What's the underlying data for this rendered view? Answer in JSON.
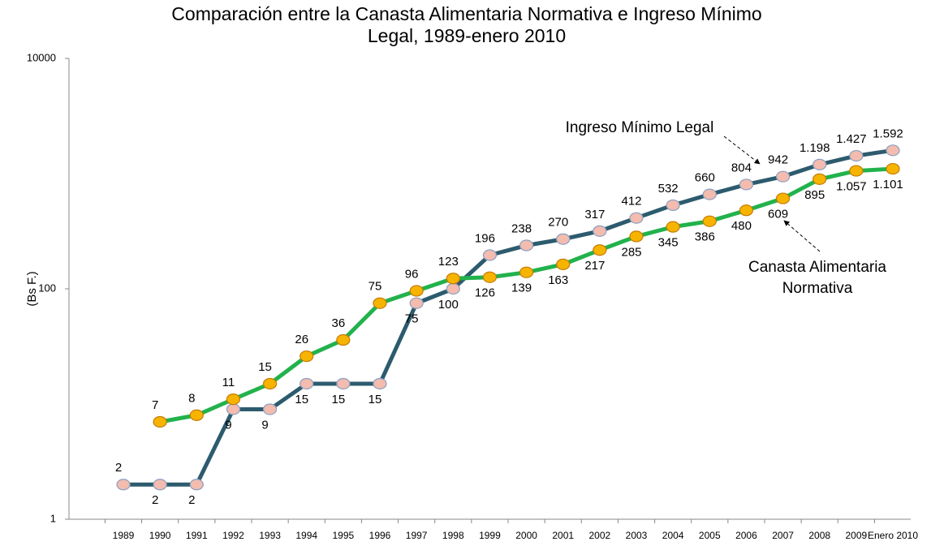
{
  "chart_data": {
    "type": "line",
    "title": [
      "Comparación entre la Canasta Alimentaria Normativa e Ingreso Mínimo",
      "Legal, 1989-enero 2010"
    ],
    "ylabel": "(Bs F.)",
    "log_scale": true,
    "ylim": [
      1,
      10000
    ],
    "yticks": [
      1,
      100,
      10000
    ],
    "categories": [
      "1989",
      "1990",
      "1991",
      "1992",
      "1993",
      "1994",
      "1995",
      "1996",
      "1997",
      "1998",
      "1999",
      "2000",
      "2001",
      "2002",
      "2003",
      "2004",
      "2005",
      "2006",
      "2007",
      "2008",
      "2009",
      "Enero 2010"
    ],
    "series": [
      {
        "name": "Ingreso Mínimo Legal",
        "color": "#2d5b6e",
        "marker_color": "#f3bcae",
        "values": [
          2,
          2,
          2,
          9,
          9,
          15,
          15,
          15,
          75,
          100,
          196,
          238,
          270,
          317,
          412,
          532,
          660,
          804,
          942,
          1198,
          1427,
          1592
        ],
        "value_labels": [
          "2",
          "2",
          "2",
          "9",
          "9",
          "15",
          "15",
          "15",
          "75",
          "100",
          "196",
          "238",
          "270",
          "317",
          "412",
          "532",
          "660",
          "804",
          "942",
          "1.198",
          "1.427",
          "1.592"
        ]
      },
      {
        "name": "Canasta Alimentaria Normativa",
        "color": "#22b24c",
        "marker_color": "#f6b400",
        "values": [
          null,
          7,
          8,
          11,
          15,
          26,
          36,
          75,
          96,
          123,
          126,
          139,
          163,
          217,
          285,
          345,
          386,
          480,
          609,
          895,
          1057,
          1101
        ],
        "value_labels": [
          null,
          "7",
          "8",
          "11",
          "15",
          "26",
          "36",
          "75",
          "96",
          "123",
          "126",
          "139",
          "163",
          "217",
          "285",
          "345",
          "386",
          "480",
          "609",
          "895",
          "1.057",
          "1.101"
        ]
      }
    ],
    "annotations": [
      {
        "lines": [
          "Ingreso Mínimo Legal"
        ]
      },
      {
        "lines": [
          "Canasta Alimentaria",
          "Normativa"
        ]
      }
    ]
  }
}
